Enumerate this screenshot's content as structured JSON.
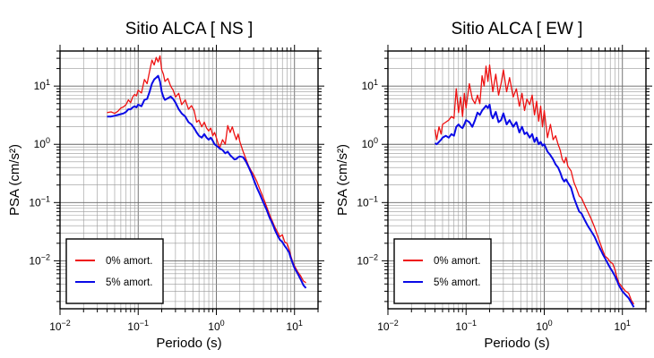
{
  "chart_data": [
    {
      "type": "line",
      "title": "Sitio ALCA [ NS ]",
      "xlabel": "Periodo (s)",
      "ylabel": "PSA (cm/s²)",
      "xscale": "log",
      "yscale": "log",
      "xlim": [
        0.01,
        20
      ],
      "ylim": [
        0.0015,
        40
      ],
      "grid": true,
      "x_ticks": [
        {
          "base": "10",
          "exp": "−2"
        },
        {
          "base": "10",
          "exp": "−1"
        },
        {
          "base": "10",
          "exp": "0"
        },
        {
          "base": "10",
          "exp": "1"
        }
      ],
      "y_ticks": [
        {
          "base": "10",
          "exp": "−2"
        },
        {
          "base": "10",
          "exp": "−1"
        },
        {
          "base": "10",
          "exp": "0"
        },
        {
          "base": "10",
          "exp": "1"
        }
      ],
      "legend_position": "bottom-left",
      "series": [
        {
          "name": "0% amort.",
          "color": "#ee1111",
          "x": [
            0.04,
            0.045,
            0.05,
            0.055,
            0.06,
            0.065,
            0.07,
            0.075,
            0.08,
            0.085,
            0.09,
            0.095,
            0.1,
            0.11,
            0.12,
            0.13,
            0.14,
            0.15,
            0.16,
            0.17,
            0.18,
            0.19,
            0.2,
            0.21,
            0.22,
            0.24,
            0.26,
            0.28,
            0.3,
            0.33,
            0.36,
            0.4,
            0.44,
            0.48,
            0.52,
            0.56,
            0.6,
            0.65,
            0.7,
            0.75,
            0.8,
            0.85,
            0.9,
            0.95,
            1.0,
            1.1,
            1.2,
            1.3,
            1.4,
            1.5,
            1.6,
            1.7,
            1.8,
            1.9,
            2.0,
            2.2,
            2.4,
            2.6,
            2.8,
            3.0,
            3.3,
            3.6,
            4.0,
            4.4,
            4.8,
            5.2,
            5.6,
            6.0,
            6.5,
            7.0,
            7.5,
            8.0,
            8.5,
            9.0,
            9.5,
            10.0,
            11.0,
            12.0,
            13.0,
            14.0
          ],
          "y": [
            3.5,
            3.6,
            3.4,
            3.7,
            4.2,
            4.4,
            4.8,
            5.8,
            5.2,
            6.5,
            7.2,
            6.8,
            8.5,
            7.6,
            13.0,
            11.0,
            18.0,
            28.0,
            23.0,
            31.0,
            26.0,
            33.0,
            19.0,
            16.0,
            12.0,
            13.5,
            10.0,
            8.5,
            6.5,
            7.5,
            4.8,
            5.8,
            4.0,
            4.6,
            3.8,
            2.4,
            2.6,
            2.0,
            2.4,
            1.9,
            1.7,
            1.9,
            1.4,
            1.6,
            1.3,
            0.85,
            1.2,
            1.0,
            2.1,
            1.6,
            2.0,
            1.5,
            1.2,
            1.5,
            1.1,
            0.75,
            0.55,
            0.42,
            0.35,
            0.3,
            0.23,
            0.17,
            0.12,
            0.085,
            0.062,
            0.048,
            0.038,
            0.032,
            0.026,
            0.028,
            0.021,
            0.02,
            0.016,
            0.012,
            0.0095,
            0.0082,
            0.0065,
            0.0055,
            0.0045,
            0.0042
          ]
        },
        {
          "name": "5% amort.",
          "color": "#0a0ae6",
          "x": [
            0.04,
            0.045,
            0.05,
            0.055,
            0.06,
            0.065,
            0.07,
            0.075,
            0.08,
            0.085,
            0.09,
            0.095,
            0.1,
            0.11,
            0.12,
            0.13,
            0.14,
            0.15,
            0.16,
            0.17,
            0.18,
            0.19,
            0.2,
            0.21,
            0.22,
            0.24,
            0.26,
            0.28,
            0.3,
            0.33,
            0.36,
            0.4,
            0.44,
            0.48,
            0.52,
            0.56,
            0.6,
            0.65,
            0.7,
            0.75,
            0.8,
            0.85,
            0.9,
            0.95,
            1.0,
            1.1,
            1.2,
            1.3,
            1.4,
            1.5,
            1.6,
            1.7,
            1.8,
            1.9,
            2.0,
            2.2,
            2.4,
            2.6,
            2.8,
            3.0,
            3.3,
            3.6,
            4.0,
            4.4,
            4.8,
            5.2,
            5.6,
            6.0,
            6.5,
            7.0,
            7.5,
            8.0,
            8.5,
            9.0,
            9.5,
            10.0,
            11.0,
            12.0,
            13.0,
            14.0
          ],
          "y": [
            3.0,
            3.0,
            3.1,
            3.2,
            3.3,
            3.4,
            3.6,
            4.0,
            4.0,
            4.3,
            4.5,
            4.3,
            4.8,
            4.5,
            5.8,
            6.0,
            8.0,
            11.0,
            13.0,
            14.0,
            15.0,
            12.0,
            8.0,
            6.5,
            5.8,
            6.2,
            6.6,
            6.0,
            5.2,
            4.0,
            3.4,
            3.0,
            2.4,
            2.2,
            1.9,
            1.6,
            1.4,
            1.3,
            1.5,
            1.3,
            1.2,
            1.3,
            1.15,
            1.0,
            0.95,
            0.85,
            0.8,
            0.7,
            0.75,
            0.65,
            0.6,
            0.55,
            0.56,
            0.6,
            0.62,
            0.6,
            0.5,
            0.4,
            0.32,
            0.25,
            0.18,
            0.14,
            0.1,
            0.075,
            0.055,
            0.044,
            0.034,
            0.028,
            0.023,
            0.021,
            0.018,
            0.016,
            0.014,
            0.011,
            0.009,
            0.0075,
            0.006,
            0.0048,
            0.0038,
            0.0034
          ]
        }
      ]
    },
    {
      "type": "line",
      "title": "Sitio ALCA [ EW ]",
      "xlabel": "Periodo (s)",
      "ylabel": "PSA (cm/s²)",
      "xscale": "log",
      "yscale": "log",
      "xlim": [
        0.01,
        20
      ],
      "ylim": [
        0.0015,
        40
      ],
      "grid": true,
      "x_ticks": [
        {
          "base": "10",
          "exp": "−2"
        },
        {
          "base": "10",
          "exp": "−1"
        },
        {
          "base": "10",
          "exp": "0"
        },
        {
          "base": "10",
          "exp": "1"
        }
      ],
      "y_ticks": [
        {
          "base": "10",
          "exp": "−2"
        },
        {
          "base": "10",
          "exp": "−1"
        },
        {
          "base": "10",
          "exp": "0"
        },
        {
          "base": "10",
          "exp": "1"
        }
      ],
      "legend_position": "bottom-left",
      "series": [
        {
          "name": "0% amort.",
          "color": "#ee1111",
          "x": [
            0.04,
            0.042,
            0.045,
            0.048,
            0.05,
            0.055,
            0.06,
            0.065,
            0.07,
            0.075,
            0.08,
            0.085,
            0.09,
            0.095,
            0.1,
            0.11,
            0.12,
            0.13,
            0.14,
            0.15,
            0.16,
            0.17,
            0.18,
            0.19,
            0.2,
            0.21,
            0.22,
            0.24,
            0.26,
            0.28,
            0.3,
            0.33,
            0.36,
            0.4,
            0.44,
            0.48,
            0.52,
            0.56,
            0.6,
            0.65,
            0.7,
            0.75,
            0.8,
            0.85,
            0.9,
            0.95,
            1.0,
            1.1,
            1.2,
            1.3,
            1.4,
            1.5,
            1.6,
            1.7,
            1.8,
            1.9,
            2.0,
            2.2,
            2.4,
            2.6,
            2.8,
            3.0,
            3.3,
            3.6,
            4.0,
            4.4,
            4.8,
            5.2,
            5.6,
            6.0,
            6.5,
            7.0,
            7.5,
            8.0,
            8.5,
            9.0,
            10.0,
            11.0,
            12.0,
            13.0,
            14.0
          ],
          "y": [
            1.8,
            1.2,
            2.0,
            1.5,
            2.2,
            2.4,
            2.6,
            3.0,
            2.8,
            9.0,
            3.5,
            6.5,
            3.0,
            7.5,
            4.2,
            11.0,
            6.0,
            5.0,
            7.0,
            5.0,
            15.0,
            10.0,
            22.0,
            12.0,
            23.0,
            13.0,
            8.0,
            16.0,
            7.0,
            11.0,
            19.0,
            8.0,
            14.0,
            6.5,
            9.0,
            4.5,
            7.5,
            3.8,
            6.0,
            4.8,
            7.0,
            3.2,
            5.5,
            2.5,
            4.5,
            2.0,
            3.8,
            1.3,
            2.2,
            1.2,
            1.4,
            1.0,
            0.8,
            0.55,
            0.48,
            0.6,
            0.42,
            0.35,
            0.22,
            0.17,
            0.13,
            0.12,
            0.09,
            0.07,
            0.052,
            0.038,
            0.027,
            0.02,
            0.015,
            0.012,
            0.011,
            0.0095,
            0.009,
            0.0072,
            0.0052,
            0.0042,
            0.0035,
            0.003,
            0.0028,
            0.0021,
            0.0018
          ]
        },
        {
          "name": "5% amort.",
          "color": "#0a0ae6",
          "x": [
            0.04,
            0.042,
            0.045,
            0.048,
            0.05,
            0.055,
            0.06,
            0.065,
            0.07,
            0.075,
            0.08,
            0.085,
            0.09,
            0.095,
            0.1,
            0.11,
            0.12,
            0.13,
            0.14,
            0.15,
            0.16,
            0.17,
            0.18,
            0.19,
            0.2,
            0.21,
            0.22,
            0.24,
            0.26,
            0.28,
            0.3,
            0.33,
            0.36,
            0.4,
            0.44,
            0.48,
            0.52,
            0.56,
            0.6,
            0.65,
            0.7,
            0.75,
            0.8,
            0.85,
            0.9,
            0.95,
            1.0,
            1.1,
            1.2,
            1.3,
            1.4,
            1.5,
            1.6,
            1.7,
            1.8,
            1.9,
            2.0,
            2.2,
            2.4,
            2.6,
            2.8,
            3.0,
            3.3,
            3.6,
            4.0,
            4.4,
            4.8,
            5.2,
            5.6,
            6.0,
            6.5,
            7.0,
            7.5,
            8.0,
            8.5,
            9.0,
            10.0,
            11.0,
            12.0,
            13.0,
            14.0
          ],
          "y": [
            1.05,
            1.0,
            1.1,
            1.2,
            1.3,
            1.4,
            1.3,
            1.5,
            1.4,
            2.0,
            2.2,
            2.0,
            1.9,
            2.2,
            2.6,
            2.4,
            2.0,
            2.6,
            3.5,
            3.2,
            3.8,
            4.2,
            4.6,
            4.2,
            4.8,
            3.2,
            2.8,
            3.6,
            2.4,
            2.6,
            3.4,
            2.2,
            2.6,
            2.0,
            2.4,
            1.6,
            2.0,
            1.5,
            1.6,
            1.3,
            1.5,
            1.1,
            1.3,
            1.0,
            1.1,
            0.95,
            1.0,
            0.75,
            0.65,
            0.55,
            0.45,
            0.4,
            0.33,
            0.26,
            0.23,
            0.25,
            0.22,
            0.18,
            0.12,
            0.09,
            0.07,
            0.065,
            0.05,
            0.04,
            0.032,
            0.026,
            0.02,
            0.016,
            0.013,
            0.011,
            0.009,
            0.0075,
            0.0065,
            0.0055,
            0.0046,
            0.0038,
            0.003,
            0.0026,
            0.0023,
            0.0019,
            0.0016
          ]
        }
      ]
    }
  ]
}
